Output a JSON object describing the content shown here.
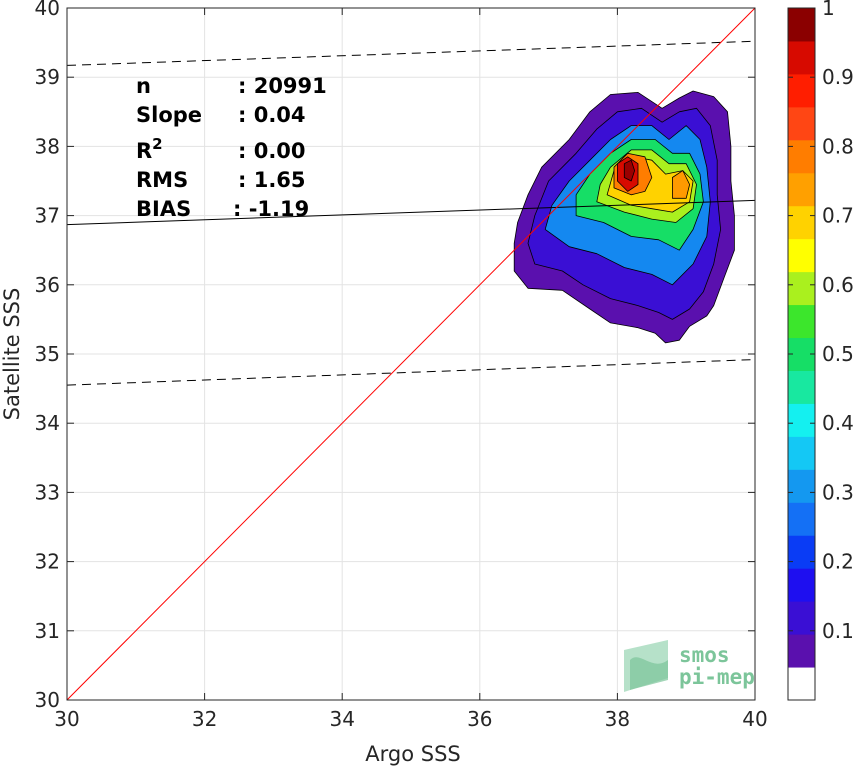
{
  "chart_data": {
    "type": "heatmap",
    "subtype": "filled-contour density scatter",
    "xlabel": "Argo SSS",
    "ylabel": "Satellite SSS",
    "xlim": [
      30,
      40
    ],
    "ylim": [
      30,
      40
    ],
    "x_ticks": [
      "30",
      "32",
      "34",
      "36",
      "38",
      "40"
    ],
    "y_ticks": [
      "30",
      "31",
      "32",
      "33",
      "34",
      "35",
      "36",
      "37",
      "38",
      "39",
      "40"
    ],
    "grid": true,
    "stats": [
      {
        "label": "n",
        "value": ": 20991"
      },
      {
        "label": "Slope",
        "value": ": 0.04"
      },
      {
        "label": "R",
        "sup": "2",
        "value": ": 0.00"
      },
      {
        "label": "RMS",
        "value": ": 1.65"
      },
      {
        "label": "BIAS",
        "value": ": -1.19"
      }
    ],
    "lines": {
      "identity": {
        "from": [
          30,
          30
        ],
        "to": [
          40,
          40
        ],
        "color": "#ff0000"
      },
      "regression": {
        "from": [
          30,
          36.87
        ],
        "to": [
          40,
          37.22
        ],
        "color": "#000000"
      },
      "upper_bound": {
        "from": [
          30,
          39.17
        ],
        "to": [
          40,
          39.52
        ],
        "color": "#000000",
        "dash": true
      },
      "lower_bound": {
        "from": [
          30,
          34.55
        ],
        "to": [
          40,
          34.92
        ],
        "color": "#000000",
        "dash": true
      }
    },
    "density_contours": [
      {
        "level": 0.05,
        "color": "#5a10ae",
        "points": [
          [
            36.5,
            36.6
          ],
          [
            36.5,
            36.2
          ],
          [
            36.7,
            35.95
          ],
          [
            37.2,
            35.92
          ],
          [
            37.6,
            35.65
          ],
          [
            37.9,
            35.45
          ],
          [
            38.3,
            35.38
          ],
          [
            38.55,
            35.3
          ],
          [
            38.7,
            35.16
          ],
          [
            38.9,
            35.2
          ],
          [
            39.05,
            35.4
          ],
          [
            39.3,
            35.55
          ],
          [
            39.4,
            35.7
          ],
          [
            39.55,
            36.1
          ],
          [
            39.7,
            36.5
          ],
          [
            39.7,
            37.0
          ],
          [
            39.65,
            37.5
          ],
          [
            39.65,
            38.0
          ],
          [
            39.6,
            38.5
          ],
          [
            39.4,
            38.72
          ],
          [
            39.1,
            38.8
          ],
          [
            38.9,
            38.7
          ],
          [
            38.65,
            38.55
          ],
          [
            38.3,
            38.78
          ],
          [
            37.9,
            38.75
          ],
          [
            37.6,
            38.5
          ],
          [
            37.3,
            38.1
          ],
          [
            36.9,
            37.7
          ],
          [
            36.7,
            37.3
          ],
          [
            36.55,
            36.9
          ]
        ]
      },
      {
        "level": 0.1,
        "color": "#3a0fd4",
        "points": [
          [
            36.7,
            36.6
          ],
          [
            36.8,
            36.3
          ],
          [
            37.2,
            36.2
          ],
          [
            37.5,
            36.0
          ],
          [
            37.9,
            35.8
          ],
          [
            38.3,
            35.7
          ],
          [
            38.6,
            35.6
          ],
          [
            38.8,
            35.5
          ],
          [
            39.05,
            35.65
          ],
          [
            39.25,
            35.9
          ],
          [
            39.4,
            36.3
          ],
          [
            39.5,
            36.8
          ],
          [
            39.45,
            37.3
          ],
          [
            39.45,
            37.8
          ],
          [
            39.35,
            38.3
          ],
          [
            39.15,
            38.55
          ],
          [
            38.9,
            38.5
          ],
          [
            38.65,
            38.35
          ],
          [
            38.35,
            38.55
          ],
          [
            38.0,
            38.5
          ],
          [
            37.7,
            38.25
          ],
          [
            37.4,
            37.9
          ],
          [
            37.0,
            37.5
          ],
          [
            36.8,
            37.0
          ]
        ]
      },
      {
        "level": 0.25,
        "color": "#1488f0",
        "points": [
          [
            36.95,
            36.8
          ],
          [
            37.3,
            36.55
          ],
          [
            37.7,
            36.45
          ],
          [
            38.1,
            36.25
          ],
          [
            38.5,
            36.15
          ],
          [
            38.8,
            36.0
          ],
          [
            39.1,
            36.3
          ],
          [
            39.3,
            36.7
          ],
          [
            39.35,
            37.2
          ],
          [
            39.3,
            37.7
          ],
          [
            39.2,
            38.1
          ],
          [
            39.0,
            38.3
          ],
          [
            38.75,
            38.1
          ],
          [
            38.5,
            38.3
          ],
          [
            38.2,
            38.3
          ],
          [
            37.9,
            38.1
          ],
          [
            37.6,
            37.8
          ],
          [
            37.3,
            37.5
          ],
          [
            37.05,
            37.15
          ]
        ]
      },
      {
        "level": 0.45,
        "color": "#16de66",
        "points": [
          [
            37.4,
            37.0
          ],
          [
            37.8,
            36.9
          ],
          [
            38.2,
            36.7
          ],
          [
            38.6,
            36.65
          ],
          [
            38.9,
            36.5
          ],
          [
            39.1,
            36.8
          ],
          [
            39.25,
            37.2
          ],
          [
            39.2,
            37.6
          ],
          [
            39.05,
            37.9
          ],
          [
            38.8,
            37.9
          ],
          [
            38.55,
            38.1
          ],
          [
            38.2,
            38.1
          ],
          [
            37.9,
            37.9
          ],
          [
            37.6,
            37.6
          ],
          [
            37.4,
            37.3
          ]
        ]
      },
      {
        "level": 0.6,
        "color": "#aaf01e",
        "points": [
          [
            37.7,
            37.2
          ],
          [
            38.1,
            37.05
          ],
          [
            38.5,
            36.95
          ],
          [
            38.85,
            36.9
          ],
          [
            39.1,
            37.1
          ],
          [
            39.15,
            37.45
          ],
          [
            39.0,
            37.75
          ],
          [
            38.75,
            37.75
          ],
          [
            38.5,
            37.95
          ],
          [
            38.2,
            37.95
          ],
          [
            37.9,
            37.7
          ],
          [
            37.75,
            37.45
          ]
        ]
      },
      {
        "level": 0.7,
        "color": "#ffd200",
        "points": [
          [
            37.85,
            37.3
          ],
          [
            38.2,
            37.15
          ],
          [
            38.5,
            37.1
          ],
          [
            38.8,
            37.05
          ],
          [
            39.05,
            37.2
          ],
          [
            39.1,
            37.5
          ],
          [
            38.95,
            37.65
          ],
          [
            38.7,
            37.6
          ],
          [
            38.5,
            37.8
          ],
          [
            38.25,
            37.85
          ],
          [
            37.95,
            37.65
          ]
        ]
      },
      {
        "level": 0.8,
        "color": "#ff7d00",
        "points": [
          [
            37.95,
            37.4
          ],
          [
            38.2,
            37.3
          ],
          [
            38.4,
            37.35
          ],
          [
            38.5,
            37.55
          ],
          [
            38.4,
            37.85
          ],
          [
            38.15,
            37.9
          ],
          [
            37.95,
            37.7
          ]
        ]
      },
      {
        "level": 0.8,
        "color": "#ff9a00",
        "points": [
          [
            38.8,
            37.25
          ],
          [
            39.0,
            37.25
          ],
          [
            39.05,
            37.45
          ],
          [
            38.95,
            37.65
          ],
          [
            38.8,
            37.55
          ]
        ]
      },
      {
        "level": 0.9,
        "color": "#d70a00",
        "points": [
          [
            38.0,
            37.5
          ],
          [
            38.15,
            37.35
          ],
          [
            38.3,
            37.45
          ],
          [
            38.3,
            37.75
          ],
          [
            38.15,
            37.85
          ],
          [
            38.0,
            37.75
          ]
        ]
      },
      {
        "level": 1.0,
        "color": "#9a0000",
        "points": [
          [
            38.1,
            37.55
          ],
          [
            38.2,
            37.5
          ],
          [
            38.25,
            37.65
          ],
          [
            38.2,
            37.8
          ],
          [
            38.1,
            37.75
          ]
        ]
      }
    ],
    "colorbar": {
      "range": [
        0,
        1
      ],
      "ticks": [
        "0.1",
        "0.2",
        "0.3",
        "0.4",
        "0.5",
        "0.6",
        "0.7",
        "0.8",
        "0.9",
        "1"
      ],
      "colors": [
        "#ffffff",
        "#5a10ae",
        "#3a0fd4",
        "#1e0ff0",
        "#0a3cf5",
        "#1470f5",
        "#1498f0",
        "#14c8f5",
        "#14f0f0",
        "#18e8a0",
        "#16de66",
        "#3ce62c",
        "#aaf01e",
        "#ffff00",
        "#ffd200",
        "#ffa000",
        "#ff7d00",
        "#ff4614",
        "#ff1e00",
        "#d70a00",
        "#8b0000"
      ]
    }
  },
  "logo": {
    "line1": "smos",
    "line2": "pi-mep"
  }
}
